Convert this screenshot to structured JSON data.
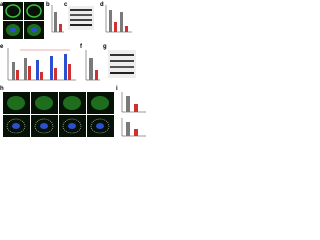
{
  "panels": [
    {
      "label": "a"
    },
    {
      "label": "b"
    },
    {
      "label": "c"
    },
    {
      "label": "d"
    },
    {
      "label": "e"
    },
    {
      "label": "f"
    },
    {
      "label": "g"
    },
    {
      "label": "h"
    },
    {
      "label": "i"
    }
  ]
}
